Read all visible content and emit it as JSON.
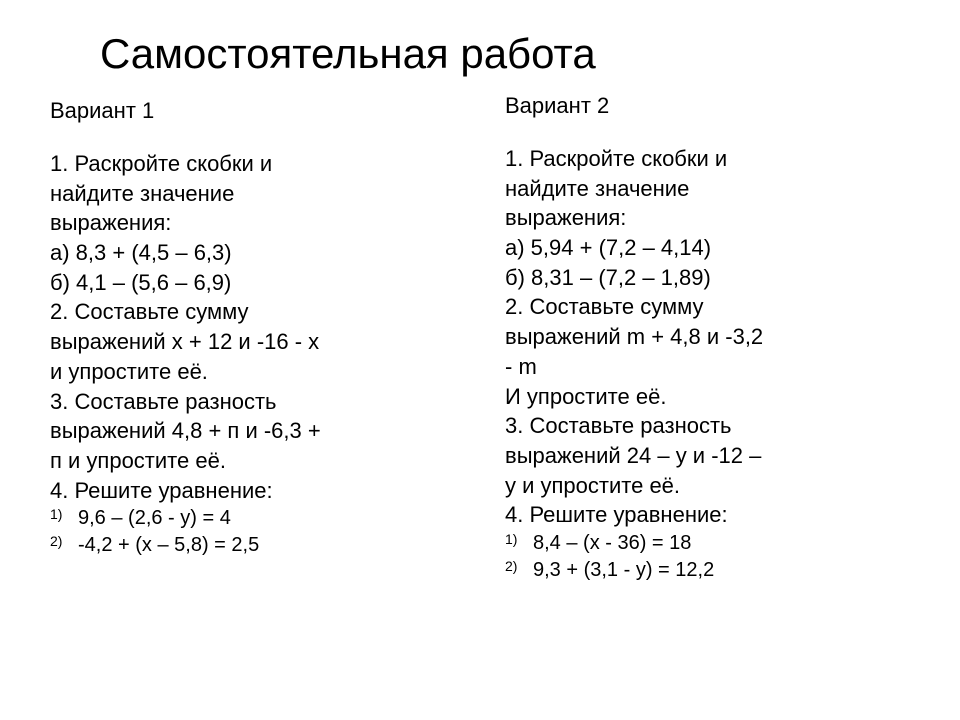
{
  "title": "Самостоятельная работа",
  "variant1": {
    "header": "Вариант 1",
    "lines": [
      "1. Раскройте скобки и",
      "найдите значение",
      "выражения:",
      "а) 8,3 + (4,5 – 6,3)",
      "б) 4,1 – (5,6 – 6,9)",
      "2. Составьте сумму",
      "выражений х + 12 и -16 - х",
      "и упростите её.",
      "3. Составьте разность",
      "выражений 4,8 + п и -6,3 +",
      "п и упростите её.",
      "4. Решите уравнение:"
    ],
    "eq1_num": "1)",
    "eq1": "9,6 – (2,6 - у) = 4",
    "eq2_num": "2)",
    "eq2": "-4,2 + (х – 5,8) = 2,5"
  },
  "variant2": {
    "header": "Вариант 2",
    "lines": [
      "1. Раскройте скобки и",
      "найдите значение",
      "выражения:",
      "а) 5,94 + (7,2 – 4,14)",
      "б) 8,31 – (7,2 – 1,89)",
      "2. Составьте сумму",
      "выражений m + 4,8 и -3,2",
      "- m",
      "И упростите её.",
      "3. Составьте разность",
      "выражений 24 – у и -12 –",
      "у и упростите её.",
      "4. Решите уравнение:"
    ],
    "eq1_num": "1)",
    "eq1": "8,4 – (х - 36) = 18",
    "eq2_num": "2)",
    "eq2": "9,3 + (3,1 - у) = 12,2"
  },
  "style": {
    "background_color": "#ffffff",
    "text_color": "#000000",
    "title_fontsize": 42,
    "body_fontsize": 22,
    "numbered_fontsize": 20,
    "num_marker_fontsize": 14,
    "font_family": "Arial"
  }
}
